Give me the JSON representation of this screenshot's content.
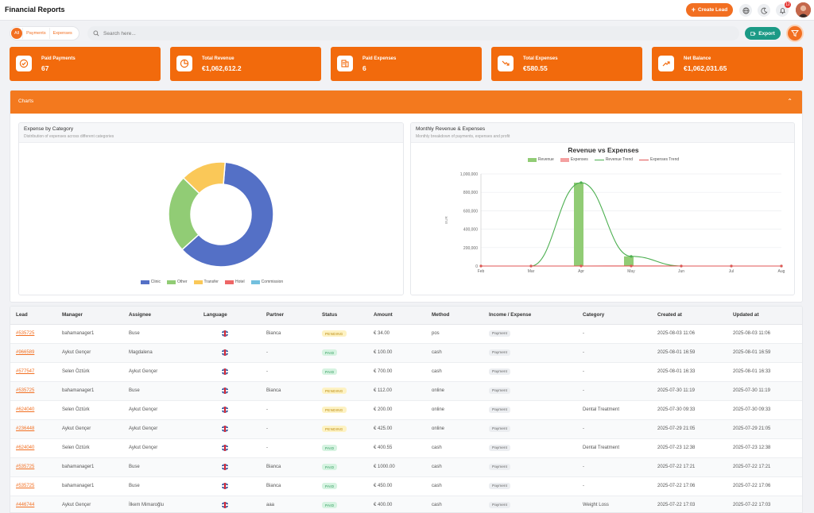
{
  "header": {
    "title": "Financial Reports",
    "create_label": "Create Lead",
    "notification_count": "12"
  },
  "filters": {
    "tabs": [
      "All",
      "Payments",
      "Expenses"
    ],
    "search_placeholder": "Search here...",
    "export_label": "Export"
  },
  "cards": [
    {
      "label": "Paid Payments",
      "value": "67",
      "icon": "check-circle-icon"
    },
    {
      "label": "Total Revenue",
      "value": "€1,062,612.2",
      "icon": "pie-chart-icon"
    },
    {
      "label": "Paid Expenses",
      "value": "6",
      "icon": "receipt-icon"
    },
    {
      "label": "Total Expenses",
      "value": "€580.55",
      "icon": "trending-down-icon"
    },
    {
      "label": "Net Balance",
      "value": "€1,062,031.65",
      "icon": "trending-up-icon"
    }
  ],
  "charts_panel": {
    "title": "Charts"
  },
  "expense_chart": {
    "title": "Expense by Category",
    "subtitle": "Distribution of expenses across different categories"
  },
  "monthly_chart": {
    "title": "Monthly Revenue & Expenses",
    "subtitle": "Monthly breakdown of payments, expenses and profit"
  },
  "chart_data": [
    {
      "type": "pie",
      "donut": true,
      "legend_position": "bottom",
      "categories": [
        "Clinic",
        "Other",
        "Transfer",
        "Hotel",
        "Commission"
      ],
      "values": [
        62,
        24,
        14,
        0,
        0
      ],
      "colors": [
        "#5470c6",
        "#91cc75",
        "#fac858",
        "#ee6666",
        "#73c0de"
      ]
    },
    {
      "type": "bar",
      "title": "Revenue vs Expenses",
      "ylabel": "EUR",
      "legend_position": "top",
      "categories": [
        "Feb",
        "Mar",
        "Apr",
        "May",
        "Jun",
        "Jul",
        "Aug"
      ],
      "ylim": [
        0,
        1000000
      ],
      "yticks": [
        0,
        200000,
        400000,
        600000,
        800000,
        1000000
      ],
      "ytick_labels": [
        "0",
        "200,000",
        "400,000",
        "600,000",
        "800,000",
        "1,000,000"
      ],
      "grid": true,
      "series": [
        {
          "name": "Revenue",
          "kind": "bar",
          "color": "#91cc75",
          "values": [
            0,
            0,
            905000,
            105000,
            0,
            0,
            0
          ]
        },
        {
          "name": "Expenses",
          "kind": "bar",
          "color": "#f4a0a0",
          "values": [
            0,
            0,
            0,
            500,
            0,
            0,
            0
          ]
        },
        {
          "name": "Revenue Trend",
          "kind": "line",
          "color": "#4caf50",
          "values": [
            0,
            0,
            905000,
            105000,
            0,
            0,
            0
          ]
        },
        {
          "name": "Expenses Trend",
          "kind": "line",
          "color": "#e05555",
          "values": [
            0,
            0,
            0,
            500,
            0,
            0,
            0
          ]
        }
      ]
    }
  ],
  "table": {
    "columns": [
      "Lead",
      "Manager",
      "Assignee",
      "Language",
      "Partner",
      "Status",
      "Amount",
      "Method",
      "Income / Expense",
      "Category",
      "Created at",
      "Updated at"
    ],
    "rows": [
      {
        "lead": "#535725",
        "manager": "bahamanager1",
        "assignee": "Buse",
        "partner": "Bianca",
        "status": "PENDING",
        "amount": "€ 34.00",
        "method": "pos",
        "type": "Payment",
        "category": "-",
        "created": "2025-08-03 11:06",
        "updated": "2025-08-03 11:06"
      },
      {
        "lead": "#966589",
        "manager": "Aykut Gençer",
        "assignee": "Magdalena",
        "partner": "-",
        "status": "PAID",
        "amount": "€ 100.00",
        "method": "cash",
        "type": "Payment",
        "category": "-",
        "created": "2025-08-01 16:59",
        "updated": "2025-08-01 16:59"
      },
      {
        "lead": "#577547",
        "manager": "Selen Öztürk",
        "assignee": "Aykut Gençer",
        "partner": "-",
        "status": "PAID",
        "amount": "€ 700.00",
        "method": "cash",
        "type": "Payment",
        "category": "-",
        "created": "2025-08-01 16:33",
        "updated": "2025-08-01 16:33"
      },
      {
        "lead": "#535725",
        "manager": "bahamanager1",
        "assignee": "Buse",
        "partner": "Bianca",
        "status": "PENDING",
        "amount": "€ 112.00",
        "method": "online",
        "type": "Payment",
        "category": "-",
        "created": "2025-07-30 11:19",
        "updated": "2025-07-30 11:19"
      },
      {
        "lead": "#624040",
        "manager": "Selen Öztürk",
        "assignee": "Aykut Gençer",
        "partner": "-",
        "status": "PENDING",
        "amount": "€ 200.00",
        "method": "online",
        "type": "Payment",
        "category": "Dental Treatment",
        "created": "2025-07-30 09:33",
        "updated": "2025-07-30 09:33"
      },
      {
        "lead": "#236448",
        "manager": "Aykut Gençer",
        "assignee": "Aykut Gençer",
        "partner": "-",
        "status": "PENDING",
        "amount": "€ 425.00",
        "method": "online",
        "type": "Payment",
        "category": "-",
        "created": "2025-07-29 21:05",
        "updated": "2025-07-29 21:05"
      },
      {
        "lead": "#624040",
        "manager": "Selen Öztürk",
        "assignee": "Aykut Gençer",
        "partner": "-",
        "status": "PAID",
        "amount": "€ 400.55",
        "method": "cash",
        "type": "Payment",
        "category": "Dental Treatment",
        "created": "2025-07-23 12:38",
        "updated": "2025-07-23 12:38"
      },
      {
        "lead": "#535725",
        "manager": "bahamanager1",
        "assignee": "Buse",
        "partner": "Bianca",
        "status": "PAID",
        "amount": "€ 1000.00",
        "method": "cash",
        "type": "Payment",
        "category": "-",
        "created": "2025-07-22 17:21",
        "updated": "2025-07-22 17:21"
      },
      {
        "lead": "#535725",
        "manager": "bahamanager1",
        "assignee": "Buse",
        "partner": "Bianca",
        "status": "PAID",
        "amount": "€ 450.00",
        "method": "cash",
        "type": "Payment",
        "category": "-",
        "created": "2025-07-22 17:06",
        "updated": "2025-07-22 17:06"
      },
      {
        "lead": "#446744",
        "manager": "Aykut Gençer",
        "assignee": "İlkem Mimaroğlu",
        "partner": "aaa",
        "status": "PAID",
        "amount": "€ 400.00",
        "method": "cash",
        "type": "Payment",
        "category": "Weight Loss",
        "created": "2025-07-22 17:03",
        "updated": "2025-07-22 17:03"
      }
    ]
  }
}
